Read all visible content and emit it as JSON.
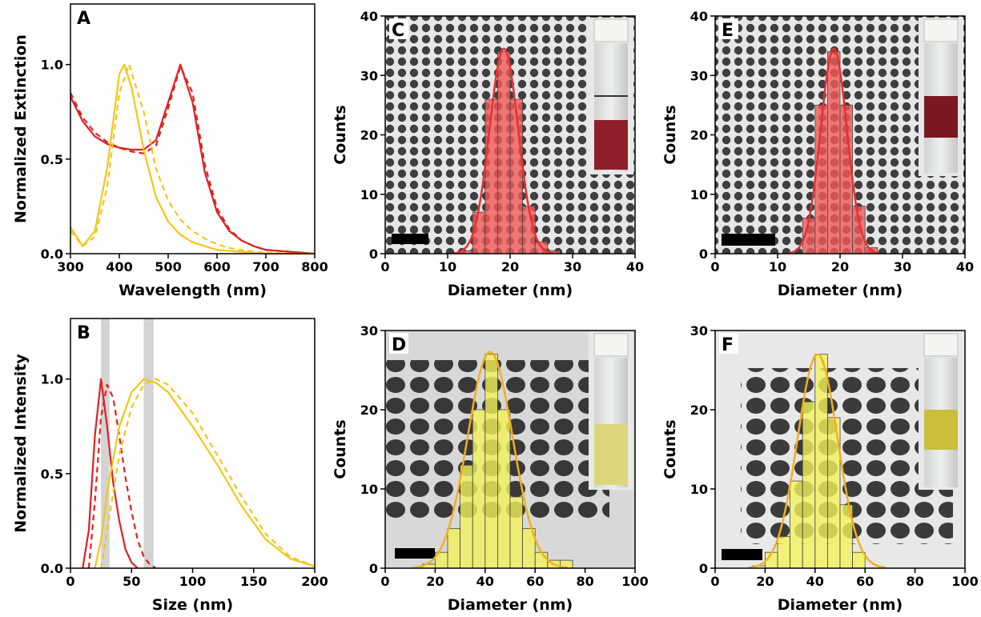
{
  "chart_data": [
    {
      "type": "line",
      "panel_label": "A",
      "xlabel": "Wavelength (nm)",
      "ylabel": "Normalized Extinction",
      "xlim": [
        300,
        800
      ],
      "xticks": [
        300,
        400,
        500,
        600,
        700,
        800
      ],
      "ylim": [
        0,
        1.32
      ],
      "yticks": [
        {
          "value": 0,
          "label": "0.0"
        },
        {
          "value": 0.5,
          "label": "0.5"
        },
        {
          "value": 1,
          "label": "1.0"
        }
      ],
      "series": [
        {
          "color": "#e02020",
          "dash": false,
          "x": [
            300,
            325,
            350,
            375,
            400,
            425,
            450,
            475,
            500,
            525,
            550,
            575,
            600,
            625,
            650,
            675,
            700,
            750,
            800
          ],
          "values": [
            0.83,
            0.7,
            0.62,
            0.58,
            0.56,
            0.55,
            0.55,
            0.6,
            0.8,
            1.0,
            0.8,
            0.43,
            0.22,
            0.12,
            0.07,
            0.04,
            0.02,
            0.01,
            0
          ]
        },
        {
          "color": "#e02020",
          "dash": true,
          "x": [
            300,
            325,
            350,
            375,
            400,
            425,
            450,
            475,
            500,
            525,
            550,
            575,
            600,
            625,
            650,
            675,
            700,
            750,
            800
          ],
          "values": [
            0.85,
            0.72,
            0.64,
            0.59,
            0.56,
            0.54,
            0.53,
            0.57,
            0.77,
            0.99,
            0.85,
            0.47,
            0.24,
            0.13,
            0.07,
            0.04,
            0.02,
            0.01,
            0
          ]
        },
        {
          "color": "#f5c518",
          "dash": false,
          "x": [
            300,
            325,
            350,
            375,
            400,
            410,
            425,
            450,
            475,
            500,
            525,
            550,
            575,
            600,
            625,
            650,
            700,
            750,
            800
          ],
          "values": [
            0.14,
            0.04,
            0.12,
            0.45,
            0.95,
            1.0,
            0.88,
            0.55,
            0.3,
            0.17,
            0.1,
            0.06,
            0.04,
            0.02,
            0.015,
            0.01,
            0,
            0,
            0
          ]
        },
        {
          "color": "#f5c518",
          "dash": true,
          "x": [
            300,
            325,
            350,
            375,
            400,
            420,
            450,
            475,
            500,
            525,
            550,
            575,
            600,
            625,
            650,
            675,
            700,
            750,
            800
          ],
          "values": [
            0.12,
            0.04,
            0.09,
            0.35,
            0.85,
            1.0,
            0.75,
            0.45,
            0.28,
            0.18,
            0.12,
            0.08,
            0.05,
            0.03,
            0.02,
            0.01,
            0.005,
            0,
            0
          ]
        }
      ]
    },
    {
      "type": "line",
      "panel_label": "B",
      "xlabel": "Size (nm)",
      "ylabel": "Normalized Intensity",
      "xlim": [
        0,
        200
      ],
      "xticks": [
        0,
        50,
        100,
        150,
        200
      ],
      "ylim": [
        0,
        1.32
      ],
      "yticks": [
        {
          "value": 0,
          "label": "0.0"
        },
        {
          "value": 0.5,
          "label": "0.5"
        },
        {
          "value": 1,
          "label": "1.0"
        }
      ],
      "bands": [
        [
          25,
          32
        ],
        [
          60,
          68
        ]
      ],
      "series": [
        {
          "color": "#e02020",
          "dash": false,
          "x": [
            10,
            15,
            20,
            25,
            30,
            35,
            40,
            45,
            50,
            55
          ],
          "values": [
            0,
            0.2,
            0.7,
            1.0,
            0.75,
            0.45,
            0.25,
            0.1,
            0.03,
            0
          ]
        },
        {
          "color": "#e02020",
          "dash": true,
          "x": [
            15,
            20,
            25,
            30,
            35,
            40,
            45,
            50,
            55,
            60,
            65,
            70
          ],
          "values": [
            0,
            0.35,
            0.8,
            0.97,
            0.9,
            0.7,
            0.48,
            0.3,
            0.15,
            0.06,
            0.02,
            0
          ]
        },
        {
          "color": "#f5c518",
          "dash": false,
          "x": [
            20,
            25,
            30,
            40,
            50,
            60,
            70,
            80,
            100,
            120,
            140,
            160,
            180,
            200
          ],
          "values": [
            0,
            0.15,
            0.4,
            0.75,
            0.93,
            1.0,
            0.98,
            0.93,
            0.75,
            0.55,
            0.33,
            0.15,
            0.05,
            0.01
          ]
        },
        {
          "color": "#f5c518",
          "dash": true,
          "x": [
            25,
            30,
            40,
            50,
            60,
            70,
            80,
            100,
            120,
            140,
            160,
            180,
            200
          ],
          "values": [
            0,
            0.2,
            0.6,
            0.85,
            0.97,
            1.0,
            0.97,
            0.82,
            0.6,
            0.38,
            0.18,
            0.06,
            0.01
          ]
        }
      ]
    },
    {
      "type": "histogram",
      "panel_label": "C",
      "xlabel": "Diameter (nm)",
      "ylabel": "Counts",
      "xlim": [
        0,
        40
      ],
      "xticks": [
        0,
        10,
        20,
        30,
        40
      ],
      "ylim": [
        0,
        40
      ],
      "yticks": [
        0,
        10,
        20,
        30,
        40
      ],
      "color": "#f25a5a",
      "bins": [
        12,
        14,
        16,
        18,
        20,
        22,
        24,
        26,
        28
      ],
      "values": [
        0.5,
        7,
        26,
        34,
        26,
        8,
        2,
        0.5
      ],
      "fit": {
        "mean": 19,
        "sd": 2.3,
        "peak": 34.5,
        "color": "#e83030"
      }
    },
    {
      "type": "histogram",
      "panel_label": "D",
      "xlabel": "Diameter (nm)",
      "ylabel": "Counts",
      "xlim": [
        0,
        100
      ],
      "xticks": [
        0,
        20,
        40,
        60,
        80,
        100
      ],
      "ylim": [
        0,
        30
      ],
      "yticks": [
        0,
        10,
        20,
        30
      ],
      "color": "#f4f35a",
      "bins": [
        15,
        20,
        25,
        30,
        35,
        40,
        45,
        50,
        55,
        60,
        65,
        70,
        75
      ],
      "values": [
        0.5,
        2,
        5,
        13,
        20,
        27,
        20,
        9,
        5,
        2,
        1,
        1
      ],
      "fit": {
        "mean": 42,
        "sd": 9,
        "peak": 27.3,
        "color": "#f0b020"
      }
    },
    {
      "type": "histogram",
      "panel_label": "E",
      "xlabel": "Diameter (nm)",
      "ylabel": "Counts",
      "xlim": [
        0,
        40
      ],
      "xticks": [
        0,
        10,
        20,
        30,
        40
      ],
      "ylim": [
        0,
        40
      ],
      "yticks": [
        0,
        10,
        20,
        30,
        40
      ],
      "color": "#f25a5a",
      "bins": [
        14,
        16,
        18,
        20,
        22,
        24,
        26
      ],
      "values": [
        6,
        25,
        34,
        25,
        8,
        1
      ],
      "fit": {
        "mean": 19,
        "sd": 2.1,
        "peak": 34.5,
        "color": "#e83030"
      }
    },
    {
      "type": "histogram",
      "panel_label": "F",
      "xlabel": "Diameter (nm)",
      "ylabel": "Counts",
      "xlim": [
        0,
        100
      ],
      "xticks": [
        0,
        20,
        40,
        60,
        80,
        100
      ],
      "ylim": [
        0,
        30
      ],
      "yticks": [
        0,
        10,
        20,
        30
      ],
      "color": "#f4f35a",
      "bins": [
        15,
        20,
        25,
        30,
        35,
        40,
        45,
        50,
        55,
        60
      ],
      "values": [
        0.3,
        2,
        4,
        11,
        21,
        27,
        19,
        8,
        2
      ],
      "fit": {
        "mean": 41,
        "sd": 8,
        "peak": 27,
        "color": "#f0b020"
      }
    }
  ]
}
